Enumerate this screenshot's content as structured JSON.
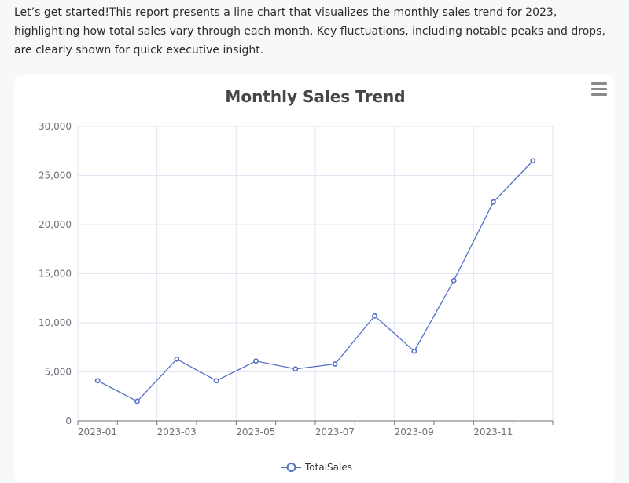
{
  "intro_text": "Let’s get started!This report presents a line chart that visualizes the monthly sales trend for 2023, highlighting how total sales vary through each month. Key fluctuations, including notable peaks and drops, are clearly shown for quick executive insight.",
  "toolbox": {
    "icon": "hamburger-menu-icon"
  },
  "colors": {
    "series": "#5470c6",
    "grid": "#e0e6f1",
    "axis": "#6e7079"
  },
  "chart_data": {
    "type": "line",
    "title": "Monthly Sales Trend",
    "xlabel": "",
    "ylabel": "",
    "x": [
      "2023-01",
      "2023-02",
      "2023-03",
      "2023-04",
      "2023-05",
      "2023-06",
      "2023-07",
      "2023-08",
      "2023-09",
      "2023-10",
      "2023-11",
      "2023-12"
    ],
    "x_tick_labels": [
      "2023-01",
      "2023-03",
      "2023-05",
      "2023-07",
      "2023-09",
      "2023-11"
    ],
    "y_tick_labels": [
      "0",
      "5,000",
      "10,000",
      "15,000",
      "20,000",
      "25,000",
      "30,000"
    ],
    "ylim": [
      0,
      30000
    ],
    "grid": true,
    "legend_position": "bottom-center",
    "series": [
      {
        "name": "TotalSales",
        "values": [
          4100,
          2000,
          6300,
          4100,
          6100,
          5300,
          5800,
          10700,
          7100,
          14300,
          22300,
          26500
        ]
      }
    ]
  }
}
